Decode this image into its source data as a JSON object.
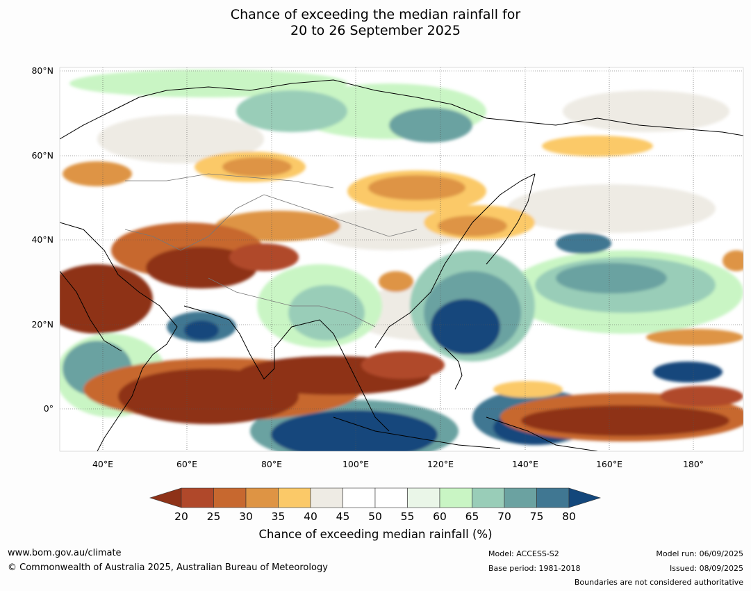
{
  "title": {
    "line1": "Chance of exceeding the median rainfall for",
    "line2": "20 to 26 September 2025"
  },
  "map": {
    "lat_labels": [
      "80°N",
      "60°N",
      "40°N",
      "20°N",
      "0°"
    ],
    "lon_labels": [
      "40°E",
      "60°E",
      "80°E",
      "100°E",
      "120°E",
      "140°E",
      "160°E",
      "180°"
    ],
    "lon_range": [
      30,
      190
    ],
    "lat_range": [
      -10,
      80
    ]
  },
  "colorbar": {
    "ticks": [
      "20",
      "25",
      "30",
      "35",
      "40",
      "45",
      "50",
      "55",
      "60",
      "65",
      "70",
      "75",
      "80"
    ],
    "colors": [
      "#8e3218",
      "#b0482a",
      "#c7682f",
      "#de9444",
      "#fbc968",
      "#eeebe4",
      "#ffffff",
      "#ffffff",
      "#eaf6e8",
      "#c9f5c4",
      "#99cdb8",
      "#6ba2a1",
      "#407792",
      "#13477b"
    ],
    "label": "Chance of exceeding median rainfall (%)"
  },
  "footer": {
    "url": "www.bom.gov.au/climate",
    "copyright": "© Commonwealth of Australia 2025, Australian Bureau of Meteorology",
    "model": "Model: ACCESS-S2",
    "base_period": "Base period: 1981-2018",
    "model_run": "Model run: 06/09/2025",
    "issued": "Issued: 08/09/2025",
    "disclaimer": "Boundaries are not considered authoritative"
  }
}
